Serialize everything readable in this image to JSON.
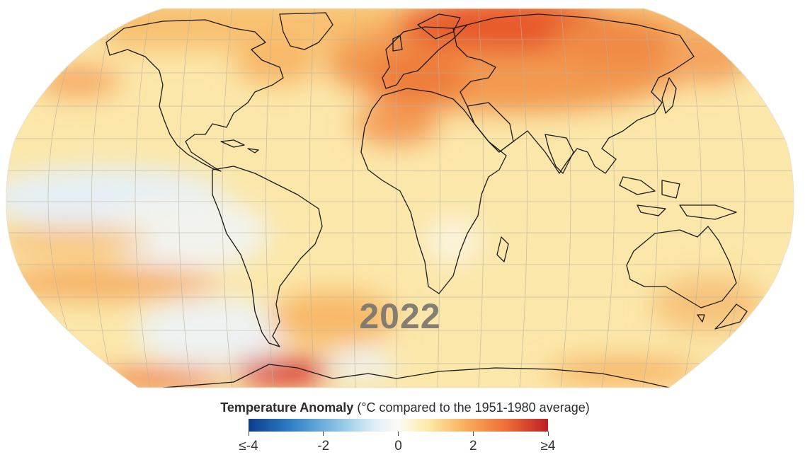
{
  "map": {
    "year": "2022",
    "projection": "robinson",
    "colors": {
      "ocean_base": "#fbe7a9",
      "land": "#fbe4a5",
      "coast": "#1a1a1a",
      "graticule": "#b9b2a0",
      "very_warm": "#c01f24",
      "warm": "#ee6d36",
      "mild": "#f8b15e",
      "neutral": "#fbfbf5",
      "cool": "#dfeef7"
    }
  },
  "legend": {
    "title_bold": "Temperature Anomaly",
    "title_rest": " (°C compared to the 1951-1980 average)",
    "ticks": [
      {
        "label": "≤-4",
        "value": -4
      },
      {
        "label": "-2",
        "value": -2
      },
      {
        "label": "0",
        "value": 0
      },
      {
        "label": "2",
        "value": 2
      },
      {
        "label": "≥4",
        "value": 4
      }
    ],
    "colorbar_colors": [
      "#0b3d8c",
      "#2f7fc5",
      "#8cc3e6",
      "#dfeef7",
      "#fbfbf5",
      "#fde9a8",
      "#f8b15e",
      "#ee6d36",
      "#c01f24"
    ]
  }
}
